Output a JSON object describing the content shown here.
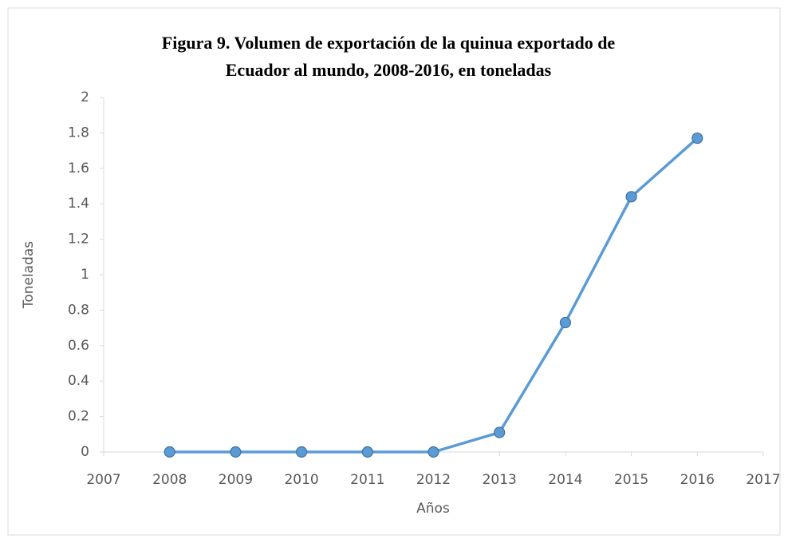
{
  "chart_data": {
    "type": "line",
    "title": [
      "Figura 9. Volumen de exportación de la quinua exportado de",
      "Ecuador al mundo, 2008-2016, en toneladas"
    ],
    "xlabel": "Años",
    "ylabel": "Toneladas",
    "x": [
      2008,
      2009,
      2010,
      2011,
      2012,
      2013,
      2014,
      2015,
      2016
    ],
    "series": [
      {
        "name": "Toneladas",
        "color": "#5b9bd5",
        "values": [
          0,
          0,
          0,
          0,
          0,
          0.11,
          0.73,
          1.44,
          1.77
        ]
      }
    ],
    "xlim": [
      2007,
      2017
    ],
    "xticks": [
      2007,
      2008,
      2009,
      2010,
      2011,
      2012,
      2013,
      2014,
      2015,
      2016,
      2017
    ],
    "ylim": [
      0,
      2
    ],
    "yticks": [
      0,
      {
        "value": 0.2,
        "label": "0.2"
      },
      {
        "value": 0.4,
        "label": "0.4"
      },
      {
        "value": 0.6,
        "label": "0.6"
      },
      {
        "value": 0.8,
        "label": "0.8"
      },
      1,
      {
        "value": 1.2,
        "label": "1.2"
      },
      {
        "value": 1.4,
        "label": "1.4"
      },
      {
        "value": 1.6,
        "label": "1.6"
      },
      {
        "value": 1.8,
        "label": "1.8"
      },
      2
    ],
    "grid": false,
    "legend": false
  }
}
